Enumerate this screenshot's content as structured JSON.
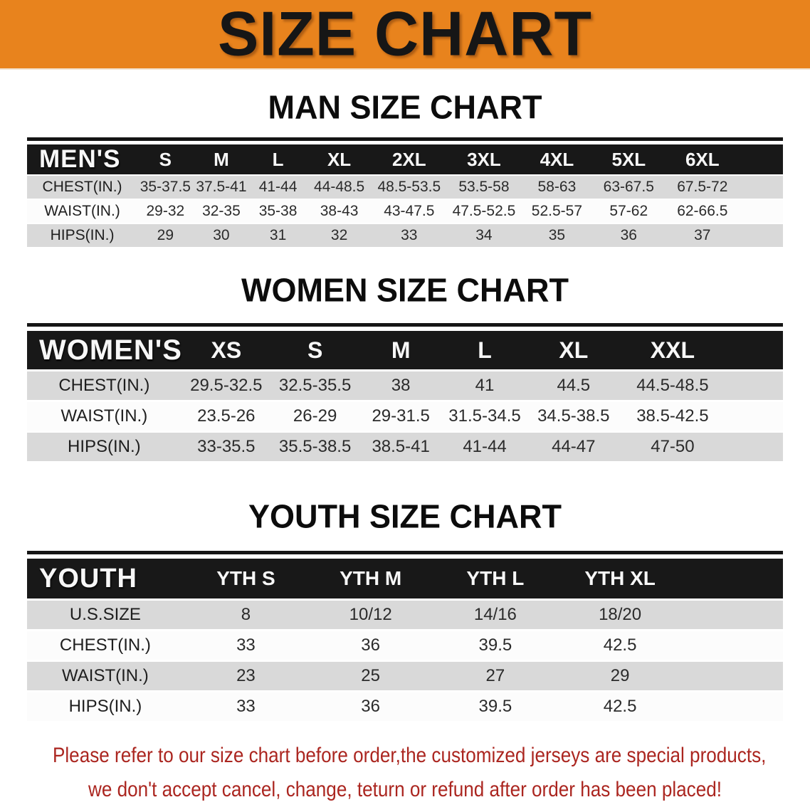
{
  "banner": {
    "title": "SIZE CHART",
    "background_color": "#E8831D",
    "title_color": "#161616"
  },
  "colors": {
    "table_header_bg": "#181818",
    "table_header_text": "#F7F7F7",
    "row_stripe": "#D9D9D9",
    "row_plain": "#FCFCFC",
    "footer_text": "#AB2620"
  },
  "sections": [
    {
      "heading": "MAN SIZE CHART",
      "table": {
        "corner_label": "MEN'S",
        "columns": [
          "S",
          "M",
          "L",
          "XL",
          "2XL",
          "3XL",
          "4XL",
          "5XL",
          "6XL"
        ],
        "rows": [
          {
            "label": "CHEST(IN.)",
            "values": [
              "35-37.5",
              "37.5-41",
              "41-44",
              "44-48.5",
              "48.5-53.5",
              "53.5-58",
              "58-63",
              "63-67.5",
              "67.5-72"
            ]
          },
          {
            "label": "WAIST(IN.)",
            "values": [
              "29-32",
              "32-35",
              "35-38",
              "38-43",
              "43-47.5",
              "47.5-52.5",
              "52.5-57",
              "57-62",
              "62-66.5"
            ]
          },
          {
            "label": "HIPS(IN.)",
            "values": [
              "29",
              "30",
              "31",
              "32",
              "33",
              "34",
              "35",
              "36",
              "37"
            ]
          }
        ]
      }
    },
    {
      "heading": "WOMEN SIZE CHART",
      "table": {
        "corner_label": "WOMEN'S",
        "columns": [
          "XS",
          "S",
          "M",
          "L",
          "XL",
          "XXL"
        ],
        "rows": [
          {
            "label": "CHEST(IN.)",
            "values": [
              "29.5-32.5",
              "32.5-35.5",
              "38",
              "41",
              "44.5",
              "44.5-48.5"
            ]
          },
          {
            "label": "WAIST(IN.)",
            "values": [
              "23.5-26",
              "26-29",
              "29-31.5",
              "31.5-34.5",
              "34.5-38.5",
              "38.5-42.5"
            ]
          },
          {
            "label": "HIPS(IN.)",
            "values": [
              "33-35.5",
              "35.5-38.5",
              "38.5-41",
              "41-44",
              "44-47",
              "47-50"
            ]
          }
        ]
      }
    },
    {
      "heading": "YOUTH SIZE CHART",
      "table": {
        "corner_label": "YOUTH",
        "columns": [
          "YTH S",
          "YTH M",
          "YTH L",
          "YTH XL"
        ],
        "rows": [
          {
            "label": "U.S.SIZE",
            "values": [
              "8",
              "10/12",
              "14/16",
              "18/20"
            ]
          },
          {
            "label": "CHEST(IN.)",
            "values": [
              "33",
              "36",
              "39.5",
              "42.5"
            ]
          },
          {
            "label": "WAIST(IN.)",
            "values": [
              "23",
              "25",
              "27",
              "29"
            ]
          },
          {
            "label": "HIPS(IN.)",
            "values": [
              "33",
              "36",
              "39.5",
              "42.5"
            ]
          }
        ]
      }
    }
  ],
  "footer": {
    "line1": "Please refer to our size chart before order,the customized jerseys are special products,",
    "line2": "we don't accept cancel, change, teturn or refund after order has been placed!"
  }
}
